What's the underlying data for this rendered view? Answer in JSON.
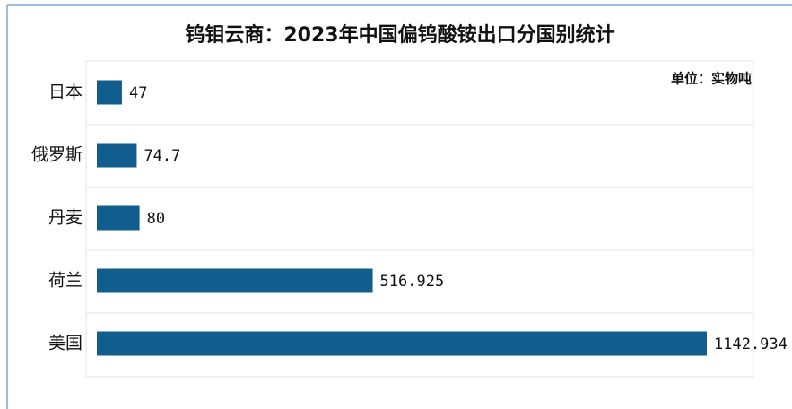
{
  "chart_data": {
    "type": "bar",
    "orientation": "horizontal",
    "title": "钨钼云商：2023年中国偏钨酸铵出口分国别统计",
    "unit_label": "单位：实物吨",
    "categories": [
      "日本",
      "俄罗斯",
      "丹麦",
      "荷兰",
      "美国"
    ],
    "values": [
      47,
      74.7,
      80,
      516.925,
      1142.934
    ],
    "color": "#115d8e"
  }
}
